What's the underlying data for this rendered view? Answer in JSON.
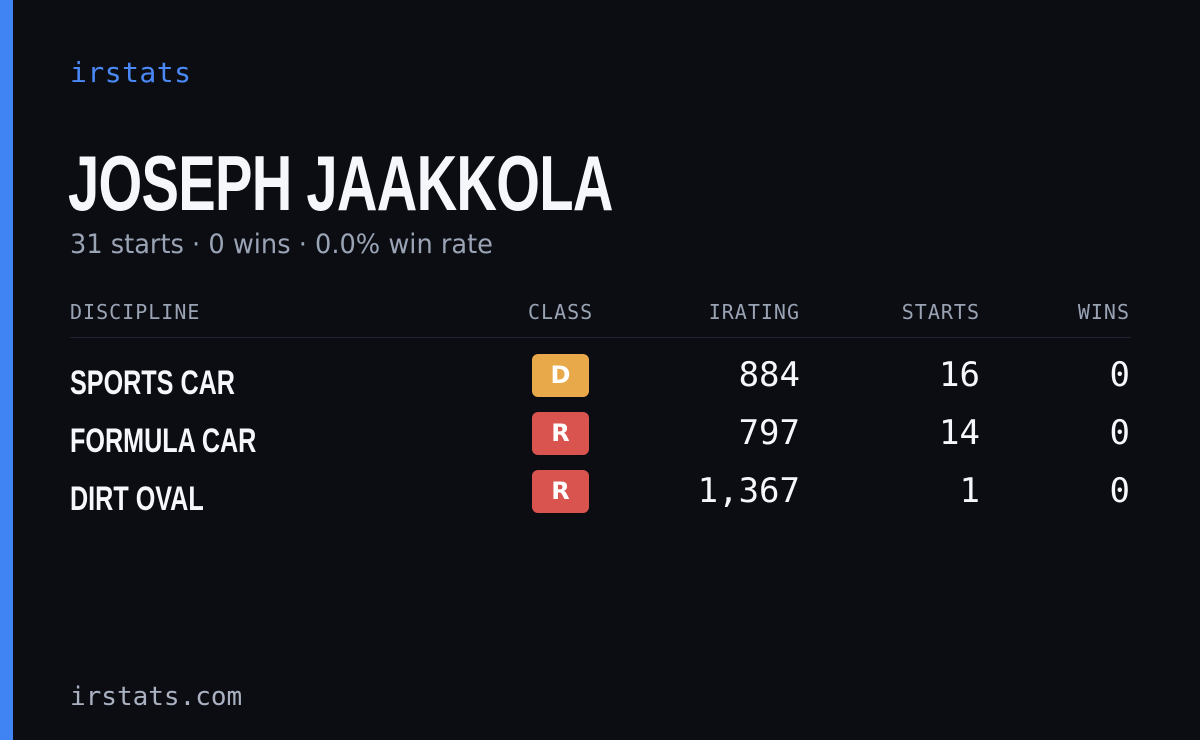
{
  "brand": "irstats",
  "driver": {
    "name": "JOSEPH JAAKKOLA",
    "summary": "31 starts · 0 wins · 0.0% win rate"
  },
  "table": {
    "headers": {
      "discipline": "DISCIPLINE",
      "class": "CLASS",
      "irating": "IRATING",
      "starts": "STARTS",
      "wins": "WINS"
    },
    "rows": [
      {
        "discipline": "SPORTS CAR",
        "class": "D",
        "class_color": "#e8a94a",
        "irating": "884",
        "starts": "16",
        "wins": "0"
      },
      {
        "discipline": "FORMULA CAR",
        "class": "R",
        "class_color": "#d9534f",
        "irating": "797",
        "starts": "14",
        "wins": "0"
      },
      {
        "discipline": "DIRT OVAL",
        "class": "R",
        "class_color": "#d9534f",
        "irating": "1,367",
        "starts": "1",
        "wins": "0"
      }
    ]
  },
  "footer": {
    "url": "irstats.com"
  },
  "colors": {
    "accent": "#3f84f2",
    "background": "#0b0d13",
    "class_d": "#e8a94a",
    "class_r": "#d9534f"
  }
}
